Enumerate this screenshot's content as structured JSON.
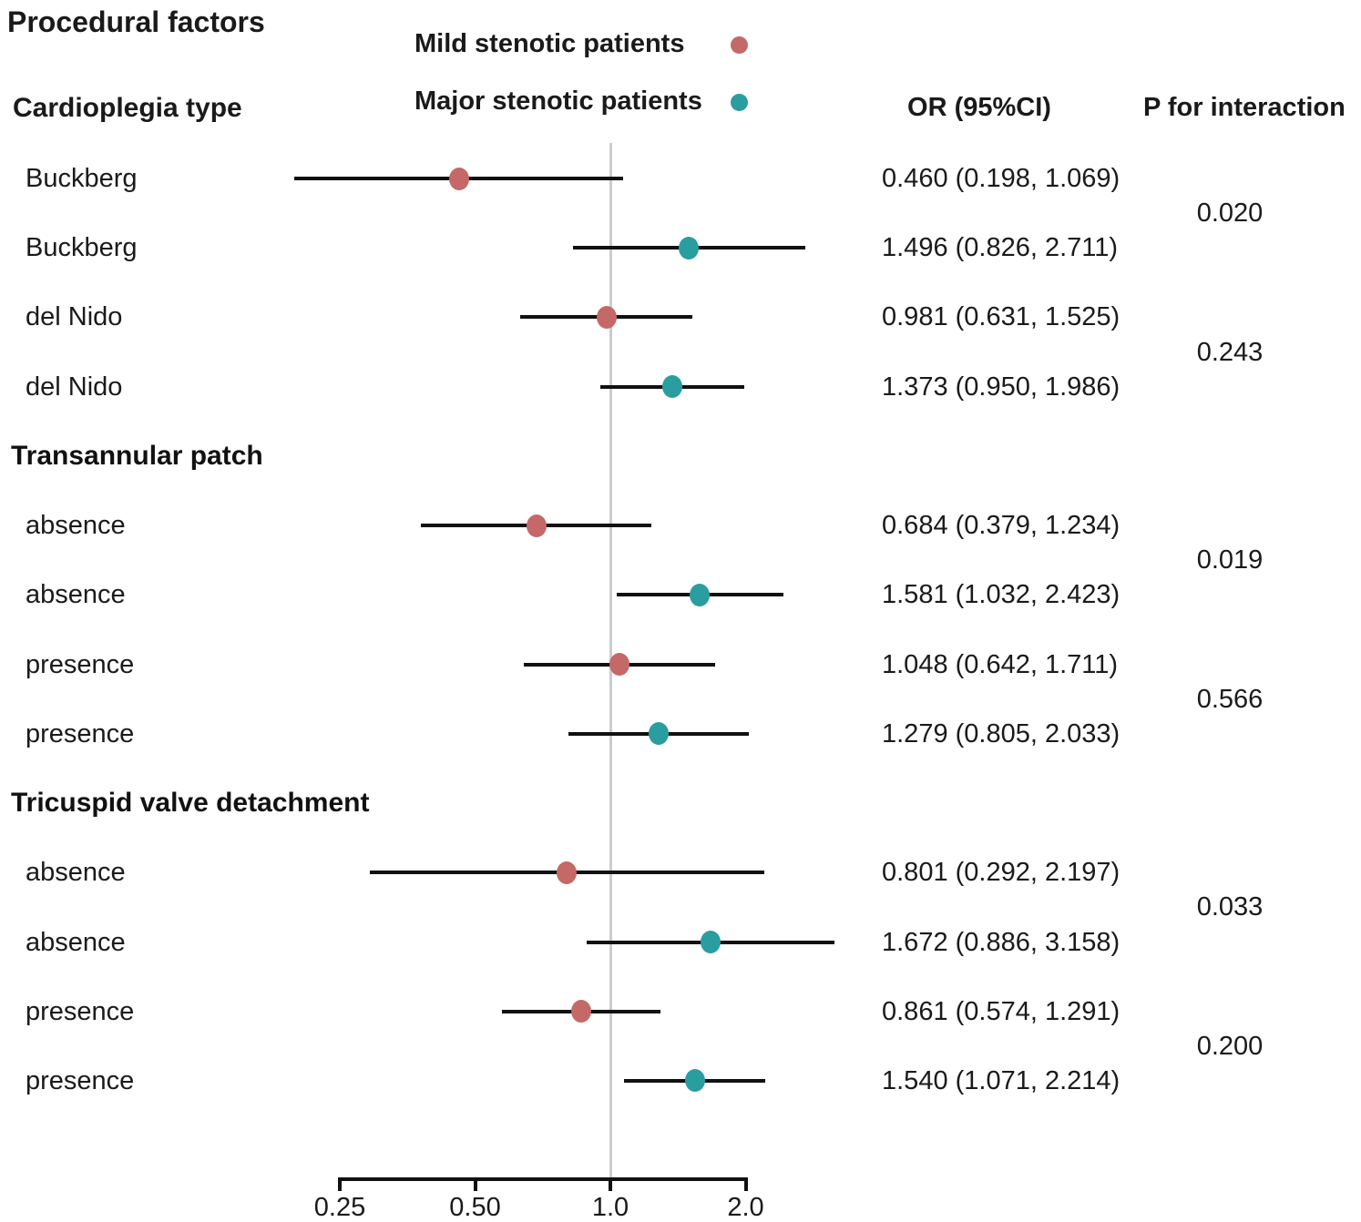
{
  "title": "Procedural factors",
  "legend": [
    {
      "key": "mild",
      "label": "Mild stenotic patients",
      "color": "#c46868"
    },
    {
      "key": "major",
      "label": "Major stenotic patients",
      "color": "#2a9da0"
    }
  ],
  "columns": {
    "or": "OR (95%CI)",
    "p": "P for interaction"
  },
  "axis": {
    "scale": "log2",
    "xlim": [
      0.25,
      2.0
    ],
    "reference_line": 1.0,
    "ticks": [
      {
        "value": 0.25,
        "label": "0.25"
      },
      {
        "value": 0.5,
        "label": "0.50"
      },
      {
        "value": 1.0,
        "label": "1.0"
      },
      {
        "value": 2.0,
        "label": "2.0"
      }
    ]
  },
  "chart_data": {
    "type": "scatter",
    "subtype": "forest-plot",
    "sections": [
      {
        "header": "Cardioplegia type",
        "pairs": [
          {
            "p_interaction": "0.020",
            "rows": [
              {
                "label": "Buckberg",
                "series": "mild",
                "or": 0.46,
                "ci_low": 0.198,
                "ci_high": 1.069,
                "or_label": "0.460 (0.198, 1.069)"
              },
              {
                "label": "Buckberg",
                "series": "major",
                "or": 1.496,
                "ci_low": 0.826,
                "ci_high": 2.711,
                "or_label": "1.496 (0.826, 2.711)"
              }
            ]
          },
          {
            "p_interaction": "0.243",
            "rows": [
              {
                "label": "del Nido",
                "series": "mild",
                "or": 0.981,
                "ci_low": 0.631,
                "ci_high": 1.525,
                "or_label": "0.981 (0.631, 1.525)"
              },
              {
                "label": "del Nido",
                "series": "major",
                "or": 1.373,
                "ci_low": 0.95,
                "ci_high": 1.986,
                "or_label": "1.373 (0.950, 1.986)"
              }
            ]
          }
        ]
      },
      {
        "header": "Transannular patch",
        "pairs": [
          {
            "p_interaction": "0.019",
            "rows": [
              {
                "label": "absence",
                "series": "mild",
                "or": 0.684,
                "ci_low": 0.379,
                "ci_high": 1.234,
                "or_label": "0.684 (0.379, 1.234)"
              },
              {
                "label": "absence",
                "series": "major",
                "or": 1.581,
                "ci_low": 1.032,
                "ci_high": 2.423,
                "or_label": "1.581 (1.032, 2.423)"
              }
            ]
          },
          {
            "p_interaction": "0.566",
            "rows": [
              {
                "label": "presence",
                "series": "mild",
                "or": 1.048,
                "ci_low": 0.642,
                "ci_high": 1.711,
                "or_label": "1.048 (0.642, 1.711)"
              },
              {
                "label": "presence",
                "series": "major",
                "or": 1.279,
                "ci_low": 0.805,
                "ci_high": 2.033,
                "or_label": "1.279 (0.805, 2.033)"
              }
            ]
          }
        ]
      },
      {
        "header": "Tricuspid valve detachment",
        "pairs": [
          {
            "p_interaction": "0.033",
            "rows": [
              {
                "label": "absence",
                "series": "mild",
                "or": 0.801,
                "ci_low": 0.292,
                "ci_high": 2.197,
                "or_label": "0.801 (0.292, 2.197)"
              },
              {
                "label": "absence",
                "series": "major",
                "or": 1.672,
                "ci_low": 0.886,
                "ci_high": 3.158,
                "or_label": "1.672 (0.886, 3.158)"
              }
            ]
          },
          {
            "p_interaction": "0.200",
            "rows": [
              {
                "label": "presence",
                "series": "mild",
                "or": 0.861,
                "ci_low": 0.574,
                "ci_high": 1.291,
                "or_label": "0.861 (0.574, 1.291)"
              },
              {
                "label": "presence",
                "series": "major",
                "or": 1.54,
                "ci_low": 1.071,
                "ci_high": 2.214,
                "or_label": "1.540 (1.071, 2.214)"
              }
            ]
          }
        ]
      }
    ]
  }
}
